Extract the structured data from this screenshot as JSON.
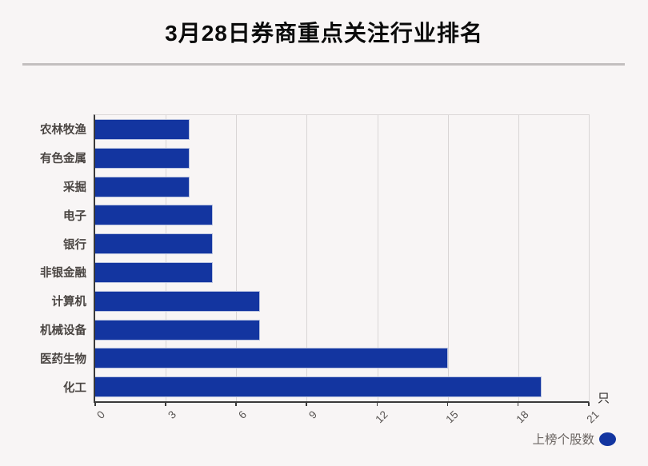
{
  "page": {
    "title": "3月28日券商重点关注行业排名",
    "unit_label": "只",
    "legend": {
      "label": "上榜个股数"
    }
  },
  "colors": {
    "background": "#f8f5f5",
    "bar_fill": "#1335a0",
    "bar_edge": "#b9c3e0",
    "axis_spine": "#3a3a3a",
    "frame_light": "#dcd8d8",
    "gridline": "#d9d5d5",
    "title_text": "#0b0b0b",
    "category_text": "#4a4542",
    "tick_text": "#585452",
    "legend_text": "#6b6562",
    "divider": "#c3bfbf"
  },
  "chart_data": {
    "type": "bar",
    "orientation": "horizontal",
    "title": "3月28日券商重点关注行业排名",
    "series_name": "上榜个股数",
    "categories": [
      "农林牧渔",
      "有色金属",
      "采掘",
      "电子",
      "银行",
      "非银金融",
      "计算机",
      "机械设备",
      "医药生物",
      "化工"
    ],
    "values": [
      4,
      4,
      4,
      5,
      5,
      5,
      7,
      7,
      15,
      19
    ],
    "xlabel": "只",
    "ylabel": "",
    "xlim": [
      0,
      21
    ],
    "xticks": [
      0,
      3,
      6,
      9,
      12,
      15,
      18,
      21
    ],
    "xtick_rotation": -45,
    "grid": true,
    "legend_position": "bottom-right",
    "bar_color": "#1335a0"
  }
}
